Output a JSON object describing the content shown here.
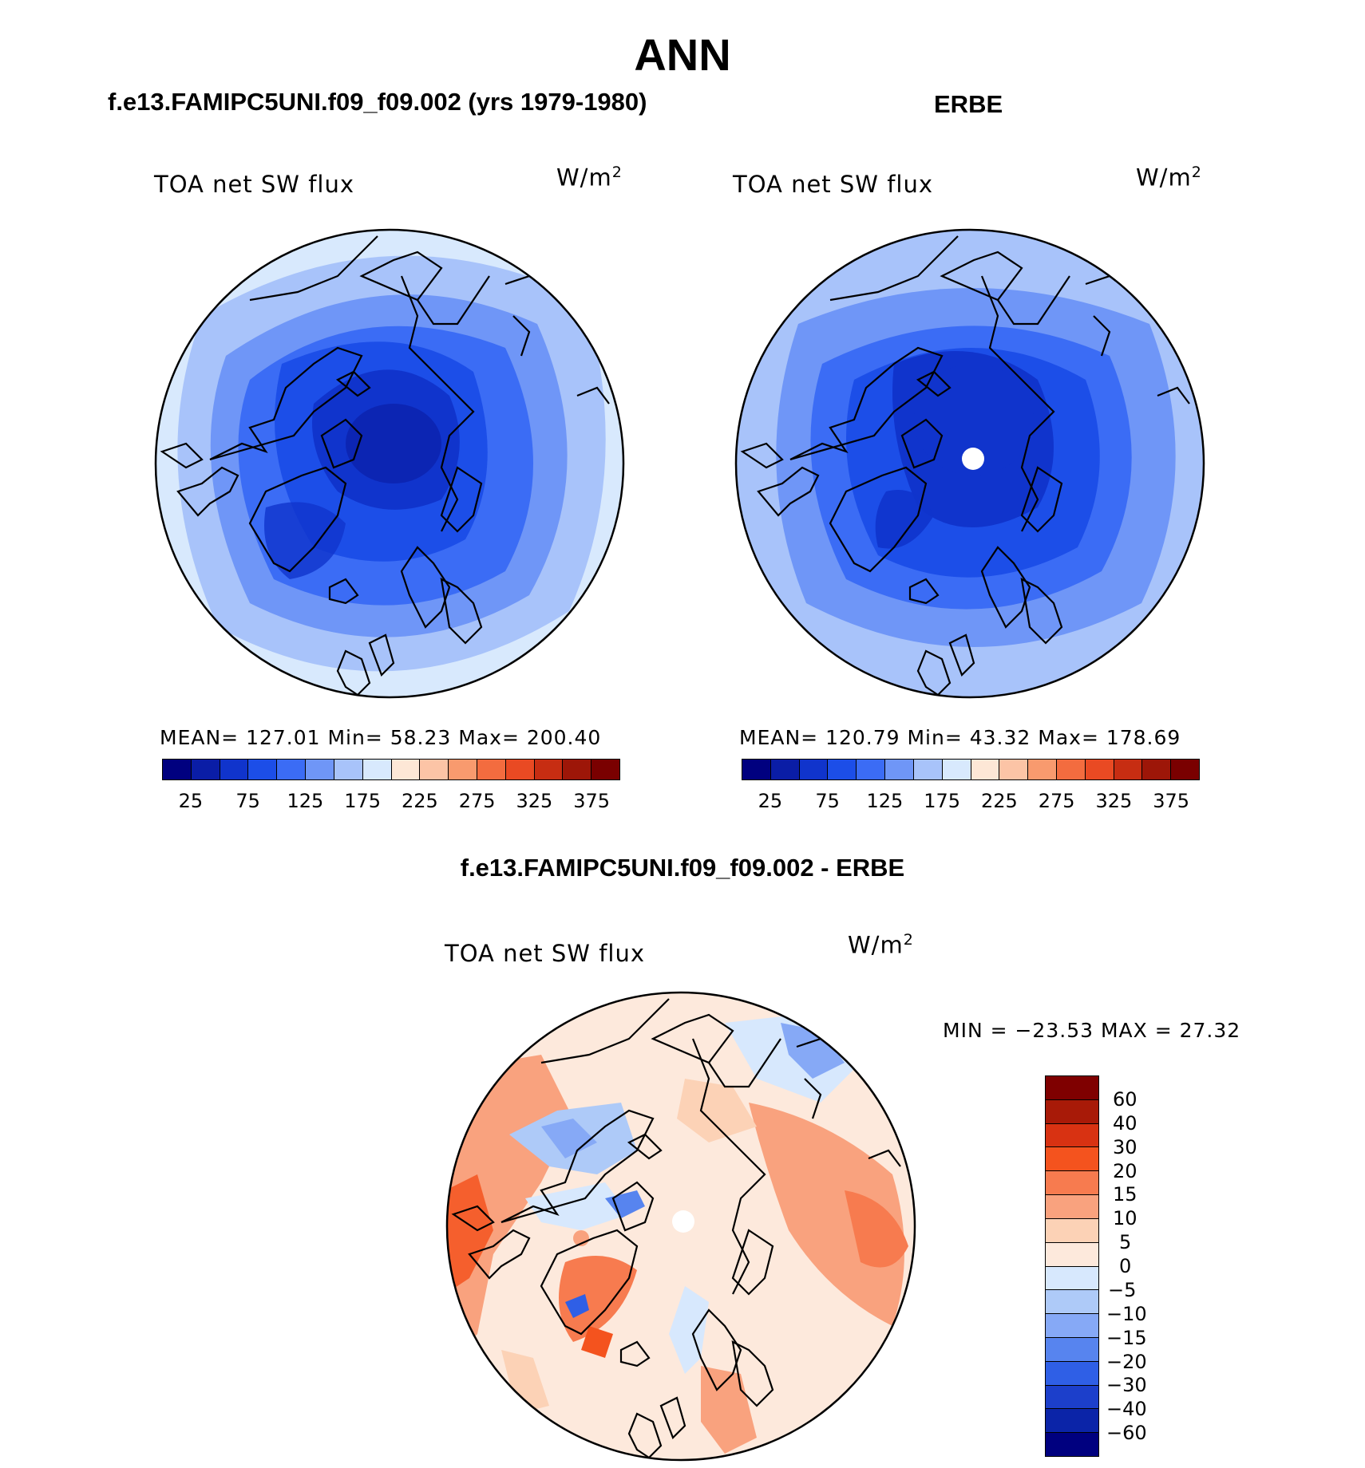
{
  "figure": {
    "title": "ANN",
    "panels": [
      {
        "id": "model",
        "case": "f.e13.FAMIPC5UNI.f09_f09.002 (yrs 1979-1980)",
        "variable": "TOA net SW flux",
        "units": "W/m",
        "units_exp": "2",
        "stats": {
          "mean": "127.01",
          "min": "58.23",
          "max": "200.40"
        },
        "stats_text": "MEAN=  127.01   Min=    58.23   Max=  200.40"
      },
      {
        "id": "obs",
        "case": "ERBE",
        "variable": "TOA net SW flux",
        "units": "W/m",
        "units_exp": "2",
        "stats": {
          "mean": "120.79",
          "min": "43.32",
          "max": "178.69"
        },
        "stats_text": "MEAN=  120.79   Min=    43.32   Max=  178.69"
      },
      {
        "id": "diff",
        "case": "f.e13.FAMIPC5UNI.f09_f09.002 - ERBE",
        "variable": "TOA net SW flux",
        "units": "W/m",
        "units_exp": "2",
        "stats": {
          "min": "−23.53",
          "max": "27.32"
        },
        "stats_text": "MIN  =  −23.53  MAX  =    27.32"
      }
    ]
  },
  "chart_data": [
    {
      "type": "heatmap",
      "projection": "north polar stereographic",
      "title": "TOA net SW flux",
      "panel": "model",
      "colorbar": {
        "orientation": "horizontal",
        "levels": [
          25,
          50,
          75,
          100,
          125,
          150,
          175,
          200,
          225,
          250,
          275,
          300,
          325,
          350,
          375
        ],
        "tick_labels": [
          "25",
          "75",
          "125",
          "175",
          "225",
          "275",
          "325",
          "375"
        ],
        "colors": [
          "#00007f",
          "#0a1da6",
          "#1034cc",
          "#1c4ee8",
          "#3b6cf5",
          "#6f96f7",
          "#a8c3fa",
          "#d8e9fd",
          "#fde7d6",
          "#fcc4a6",
          "#f89a6e",
          "#f36c3f",
          "#e94a23",
          "#c72d12",
          "#9d1608",
          "#7a0000"
        ]
      },
      "field_summary": {
        "mean": 127.01,
        "min": 58.23,
        "max": 200.4
      }
    },
    {
      "type": "heatmap",
      "projection": "north polar stereographic",
      "title": "TOA net SW flux",
      "panel": "obs",
      "colorbar": {
        "orientation": "horizontal",
        "levels": [
          25,
          50,
          75,
          100,
          125,
          150,
          175,
          200,
          225,
          250,
          275,
          300,
          325,
          350,
          375
        ],
        "tick_labels": [
          "25",
          "75",
          "125",
          "175",
          "225",
          "275",
          "325",
          "375"
        ],
        "colors": [
          "#00007f",
          "#0a1da6",
          "#1034cc",
          "#1c4ee8",
          "#3b6cf5",
          "#6f96f7",
          "#a8c3fa",
          "#d8e9fd",
          "#fde7d6",
          "#fcc4a6",
          "#f89a6e",
          "#f36c3f",
          "#e94a23",
          "#c72d12",
          "#9d1608",
          "#7a0000"
        ]
      },
      "field_summary": {
        "mean": 120.79,
        "min": 43.32,
        "max": 178.69
      }
    },
    {
      "type": "heatmap",
      "projection": "north polar stereographic",
      "title": "TOA net SW flux",
      "panel": "diff",
      "colorbar": {
        "orientation": "vertical",
        "levels": [
          60,
          40,
          30,
          20,
          15,
          10,
          5,
          0,
          -5,
          -10,
          -15,
          -20,
          -30,
          -40,
          -60
        ],
        "tick_labels": [
          "60",
          "40",
          "30",
          "20",
          "15",
          "10",
          "5",
          "0",
          "−5",
          "−10",
          "−15",
          "−20",
          "−30",
          "−40",
          "−60"
        ],
        "colors": [
          "#7f0000",
          "#a81a08",
          "#d83212",
          "#f4531e",
          "#f77b4f",
          "#f9a27e",
          "#fcd2b6",
          "#fde9dc",
          "#d7e8fd",
          "#aecaf8",
          "#86a9f6",
          "#5784ef",
          "#2f5fe6",
          "#1c3fcb",
          "#0b24a8",
          "#00007f"
        ]
      },
      "field_summary": {
        "min": -23.53,
        "max": 27.32
      }
    }
  ]
}
